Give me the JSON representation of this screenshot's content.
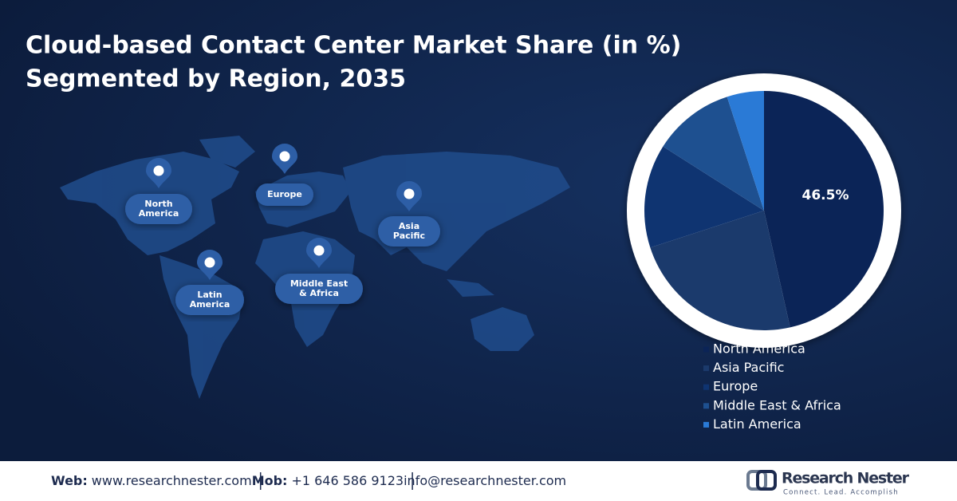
{
  "chart_data": {
    "type": "pie",
    "title": "Cloud-based Contact Center Market Share (in %)",
    "subtitle": "Segmented by Region, 2035",
    "categories": [
      "North America",
      "Asia Pacific",
      "Europe",
      "Middle East & Africa",
      "Latin America"
    ],
    "values": [
      46.5,
      23.5,
      14,
      11,
      5
    ],
    "value_labels": [
      "46.5%",
      null,
      null,
      null,
      null
    ],
    "colors": [
      "#0b2457",
      "#1b3a6c",
      "#0f3471",
      "#1e5090",
      "#2a7ad6"
    ],
    "legend": "bottom-right"
  },
  "map": {
    "pins": [
      {
        "lines": [
          "North",
          "America"
        ]
      },
      {
        "lines": [
          "Europe"
        ]
      },
      {
        "lines": [
          "Asia",
          "Pacific"
        ]
      },
      {
        "lines": [
          "Latin",
          "America"
        ]
      },
      {
        "lines": [
          "Middle East",
          "& Africa"
        ]
      }
    ]
  },
  "footer": [
    {
      "label": "Web:",
      "value": "www.researchnester.com"
    },
    {
      "label": "Mob:",
      "value": "+1 646 586 9123"
    },
    {
      "label": null,
      "value": "info@researchnester.com"
    }
  ],
  "logo": {
    "name": "Research Nester",
    "tagline": "Connect. Lead. Accomplish"
  }
}
